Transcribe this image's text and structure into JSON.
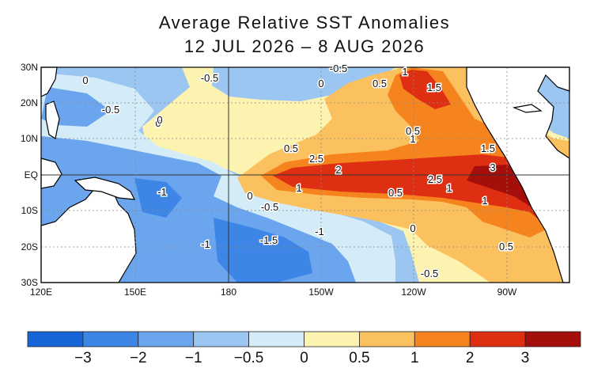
{
  "title_line1": "Average Relative SST Anomalies",
  "title_line2": "12 JUL 2026 – 8 AUG 2026",
  "lat_labels": [
    "30N",
    "20N",
    "10N",
    "EQ",
    "10S",
    "20S",
    "30S"
  ],
  "lon_labels": [
    "120E",
    "150E",
    "180",
    "150W",
    "120W",
    "90W"
  ],
  "contour_labels": [
    "0",
    "-0.5",
    "0",
    "0.5",
    "1",
    "1.5",
    "0.5",
    "-0.5",
    "0",
    "0.5",
    "0.5",
    "1.5",
    "2",
    "2.5",
    "3",
    "1",
    "-1",
    "0",
    "-0.5",
    "1",
    "0.5",
    "2.5",
    "1",
    "0",
    "-1.5",
    "-1",
    "-1",
    "0.5",
    "-0.5",
    "-0.5",
    "1",
    "0"
  ],
  "colorbar": {
    "tick_labels": [
      "−3",
      "−2",
      "−1",
      "−0.5",
      "0",
      "0.5",
      "1",
      "2",
      "3"
    ],
    "colors": [
      "#1565d8",
      "#3d86e6",
      "#6aa5ee",
      "#9cc6f2",
      "#d3ecf8",
      "#fdf3b0",
      "#fbc15e",
      "#f5841f",
      "#df2f13",
      "#a50f0b"
    ]
  },
  "colors": {
    "land": "#ffffff",
    "coast": "#000000"
  }
}
